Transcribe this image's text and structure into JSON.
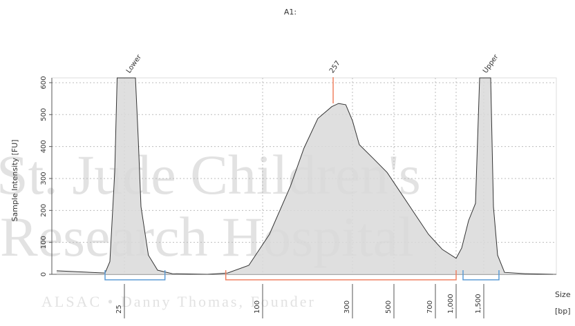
{
  "chart_data": {
    "type": "area",
    "title": "A1:",
    "ylabel": "Sample Intensity [FU]",
    "xlabel": [
      "Size",
      "[bp]"
    ],
    "x": [
      11,
      21,
      22,
      23,
      23.5,
      31,
      32.5,
      34,
      38,
      43,
      51,
      70,
      81,
      92.5,
      115,
      162,
      192,
      223,
      254,
      269,
      285,
      300,
      333,
      400,
      467,
      533,
      600,
      667,
      800,
      1000,
      1100,
      1225,
      1350,
      1425,
      1643,
      1700,
      1786,
      1929,
      2357,
      2929
    ],
    "series": [
      {
        "name": "A1",
        "color": "#d9d9d9",
        "line_color": "#333333",
        "values": [
          11,
          4,
          40,
          320,
          615,
          615,
          427,
          212,
          60,
          13,
          2,
          0,
          4,
          28,
          125,
          276,
          395,
          488,
          525,
          535,
          531,
          481,
          406,
          363,
          319,
          255,
          190,
          125,
          78,
          50,
          82,
          168,
          222,
          615,
          615,
          212,
          60,
          6,
          2,
          0
        ]
      }
    ],
    "xlim": [
      10,
      3000
    ],
    "xticks": [
      25,
      100,
      300,
      500,
      700,
      {
        "value": 1000,
        "label": "1,000"
      },
      {
        "value": 1500,
        "label": "1,500"
      }
    ],
    "ylim": [
      0,
      615
    ],
    "yticks": [
      0,
      100,
      200,
      300,
      400,
      500,
      600
    ],
    "grid": true,
    "annotations": [
      {
        "text": "Lower",
        "x": 28
      },
      {
        "text": "257",
        "x": 257,
        "color": "#f08060"
      },
      {
        "text": "Upper",
        "x": 1560
      }
    ],
    "regions": [
      {
        "x": [
          21,
          47
        ],
        "color": "#5b9bd5"
      },
      {
        "x": [
          80,
          1000
        ],
        "color": "#f08060"
      },
      {
        "x": [
          1125,
          1814
        ],
        "color": "#5b9bd5"
      }
    ],
    "watermark": [
      "St. Jude Children's",
      "Research Hospital",
      "ALSAC • Danny Thomas, Founder"
    ]
  }
}
